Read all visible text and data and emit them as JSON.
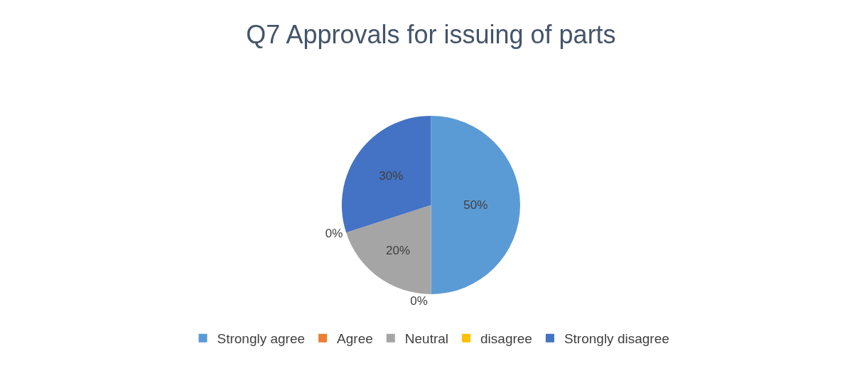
{
  "chart_data": {
    "type": "pie",
    "title": "Q7 Approvals for issuing of parts",
    "categories": [
      "Strongly agree",
      "Agree",
      "Neutral",
      "disagree",
      "Strongly disagree"
    ],
    "values": [
      50,
      0,
      20,
      0,
      30
    ],
    "value_labels": [
      "50%",
      "0%",
      "20%",
      "0%",
      "30%"
    ],
    "colors": [
      "#5b9bd5",
      "#ed7d31",
      "#a5a5a5",
      "#ffc000",
      "#4472c4"
    ],
    "legend": "bottom"
  }
}
